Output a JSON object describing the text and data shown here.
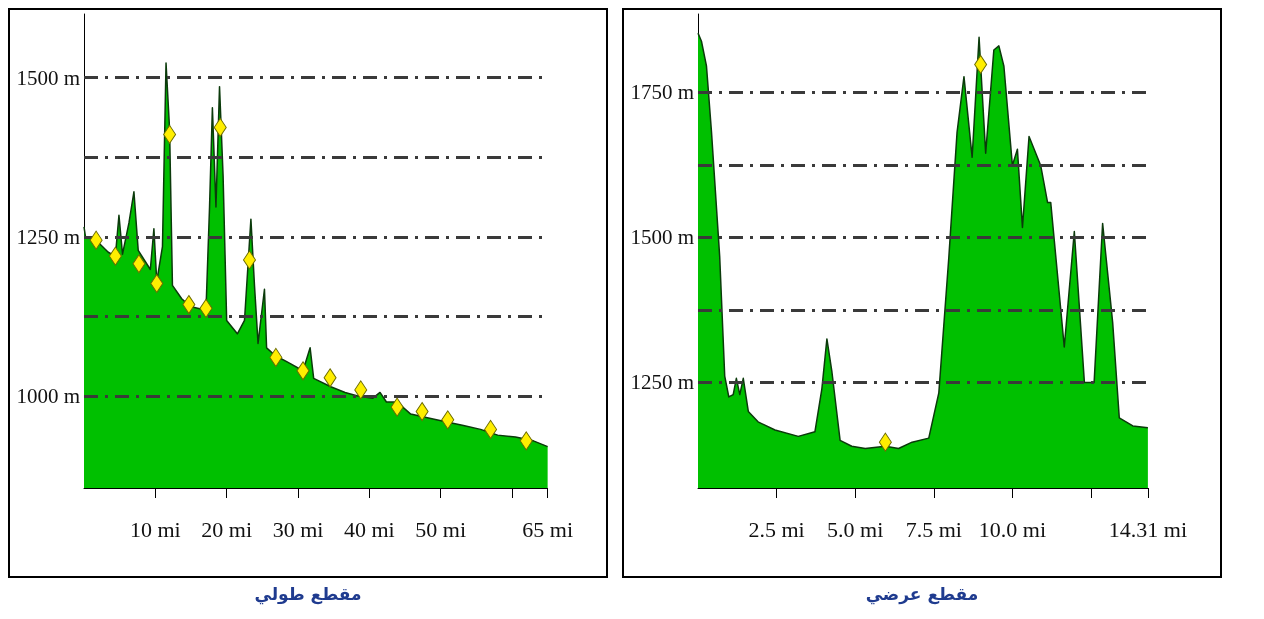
{
  "chart_data": [
    {
      "type": "area",
      "title": "مقطع طولي",
      "xlim": [
        0,
        65
      ],
      "ylim": [
        856,
        1600
      ],
      "xticks": [
        {
          "value": 10,
          "label": "10 mi"
        },
        {
          "value": 20,
          "label": "20 mi"
        },
        {
          "value": 30,
          "label": "30 mi"
        },
        {
          "value": 40,
          "label": "40 mi"
        },
        {
          "value": 50,
          "label": "50 mi"
        },
        {
          "value": 60,
          "label": null
        },
        {
          "value": 65,
          "label": "65 mi"
        }
      ],
      "yticks": [
        {
          "value": 1000,
          "label": "1000 m"
        },
        {
          "value": 1125,
          "label": null
        },
        {
          "value": 1250,
          "label": "1250 m"
        },
        {
          "value": 1375,
          "label": null
        },
        {
          "value": 1500,
          "label": "1500 m"
        }
      ],
      "grid": "y",
      "series": [
        {
          "type": "area",
          "color": "#00c000",
          "x": [
            0,
            0.2,
            1.7,
            3.4,
            4.4,
            4.9,
            5.4,
            6.3,
            7,
            7.6,
            9.3,
            9.8,
            10.2,
            11,
            11.5,
            12,
            12.4,
            13.7,
            14.9,
            17.1,
            17.6,
            18,
            18.5,
            19,
            19.5,
            20,
            21.5,
            22.5,
            23.4,
            23.9,
            24.4,
            25.3,
            25.6,
            26.8,
            28.8,
            30.7,
            31.7,
            32.2,
            34.6,
            36.6,
            38.5,
            40.5,
            41.5,
            42.4,
            43.9,
            45.8,
            48.3,
            50.7,
            53.2,
            55.6,
            58,
            60.5,
            63,
            65
          ],
          "values": [
            1266,
            1251,
            1245,
            1226,
            1220,
            1284,
            1223,
            1272,
            1321,
            1229,
            1199,
            1263,
            1180,
            1235,
            1523,
            1419,
            1174,
            1153,
            1141,
            1135,
            1297,
            1453,
            1297,
            1486,
            1346,
            1119,
            1098,
            1119,
            1278,
            1174,
            1083,
            1168,
            1076,
            1064,
            1052,
            1040,
            1076,
            1028,
            1015,
            1006,
            1000,
            997,
            1006,
            991,
            991,
            972,
            966,
            960,
            954,
            948,
            939,
            936,
            930,
            921
          ]
        },
        {
          "type": "scatter",
          "marker": "diamond",
          "color": "#ffee00",
          "x": [
            1.7,
            4.4,
            7.7,
            10.2,
            12,
            14.7,
            17.1,
            19.1,
            23.2,
            26.9,
            30.7,
            34.5,
            38.8,
            43.9,
            47.4,
            51,
            57,
            62
          ],
          "values": [
            1245,
            1220,
            1208,
            1177,
            1411,
            1144,
            1138,
            1422,
            1214,
            1061,
            1040,
            1029,
            1010,
            983,
            976,
            963,
            948,
            930
          ]
        }
      ]
    },
    {
      "type": "area",
      "title": "مقطع عرضي",
      "xlim": [
        0,
        14.31
      ],
      "ylim": [
        1068,
        1885
      ],
      "xticks": [
        {
          "value": 2.5,
          "label": "2.5 mi"
        },
        {
          "value": 5,
          "label": "5.0 mi"
        },
        {
          "value": 7.5,
          "label": "7.5 mi"
        },
        {
          "value": 10,
          "label": "10.0 mi"
        },
        {
          "value": 12.5,
          "label": null
        },
        {
          "value": 14.31,
          "label": "14.31 mi"
        }
      ],
      "yticks": [
        {
          "value": 1250,
          "label": "1250 m"
        },
        {
          "value": 1375,
          "label": null
        },
        {
          "value": 1500,
          "label": "1500 m"
        },
        {
          "value": 1625,
          "label": null
        },
        {
          "value": 1750,
          "label": "1750 m"
        }
      ],
      "grid": "y",
      "series": [
        {
          "type": "area",
          "color": "#00c000",
          "x": [
            0,
            0.11,
            0.27,
            0.43,
            0.69,
            0.85,
            0.98,
            1.12,
            1.22,
            1.33,
            1.44,
            1.6,
            1.91,
            2.45,
            3.19,
            3.72,
            3.94,
            4.1,
            4.26,
            4.52,
            4.89,
            5.32,
            5.96,
            6.38,
            6.81,
            7.34,
            7.66,
            7.98,
            8.24,
            8.46,
            8.72,
            8.94,
            9.15,
            9.41,
            9.57,
            9.73,
            10,
            10.16,
            10.32,
            10.53,
            10.9,
            11.12,
            11.22,
            11.65,
            11.97,
            12.29,
            12.6,
            12.87,
            13.19,
            13.4,
            13.83,
            14.31
          ],
          "values": [
            1852,
            1838,
            1795,
            1681,
            1467,
            1261,
            1225,
            1229,
            1257,
            1229,
            1257,
            1200,
            1182,
            1168,
            1157,
            1165,
            1239,
            1325,
            1268,
            1150,
            1140,
            1136,
            1140,
            1136,
            1147,
            1154,
            1232,
            1467,
            1681,
            1777,
            1638,
            1845,
            1645,
            1823,
            1830,
            1795,
            1624,
            1652,
            1517,
            1674,
            1624,
            1560,
            1560,
            1311,
            1510,
            1250,
            1250,
            1524,
            1353,
            1189,
            1175,
            1172
          ]
        },
        {
          "type": "scatter",
          "marker": "diamond",
          "color": "#ffee00",
          "x": [
            5.96,
            8.99
          ],
          "values": [
            1147,
            1798
          ]
        }
      ]
    }
  ]
}
